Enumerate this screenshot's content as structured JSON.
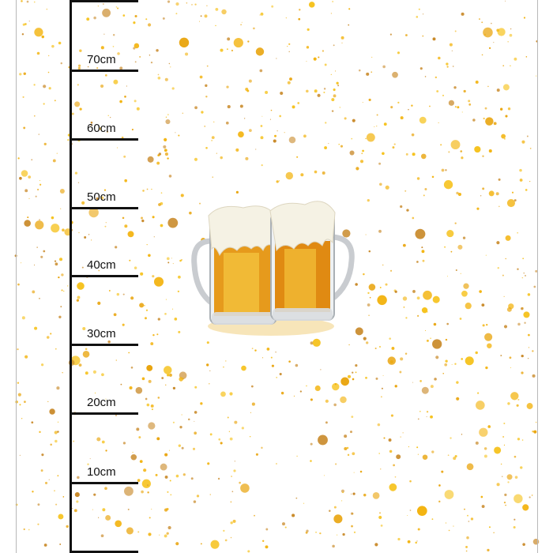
{
  "ruler": {
    "labels": [
      "70cm",
      "60cm",
      "50cm",
      "40cm",
      "30cm",
      "20cm",
      "10cm"
    ]
  },
  "artwork": {
    "subject": "two beer mugs",
    "colors": {
      "splatter": "#f3b411",
      "beer": "#e08a12",
      "foam": "#f4f1e6",
      "ruler": "#111111"
    }
  }
}
